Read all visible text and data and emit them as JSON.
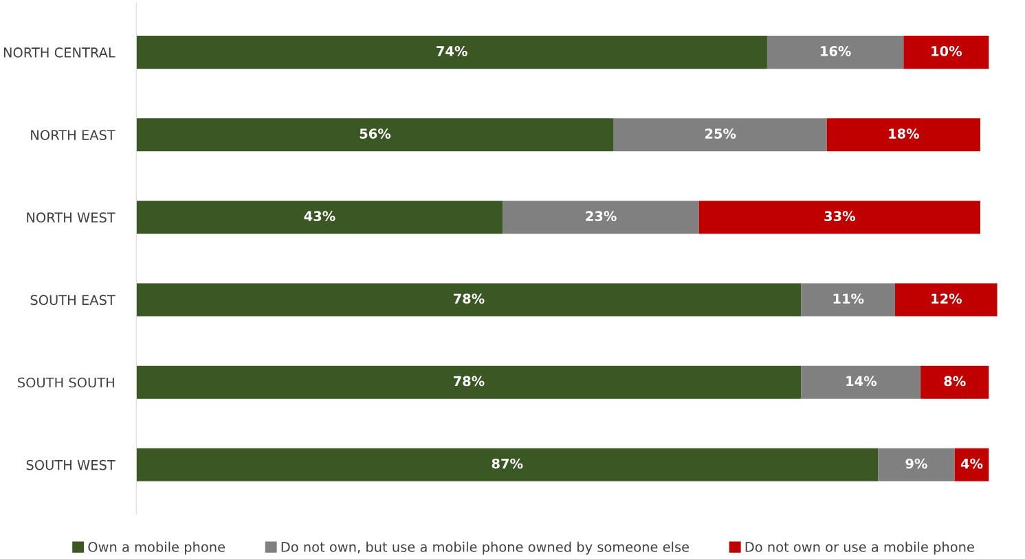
{
  "chart_data": {
    "type": "bar",
    "orientation": "horizontal",
    "stacked": true,
    "categories": [
      "NORTH CENTRAL",
      "NORTH EAST",
      "NORTH WEST",
      "SOUTH EAST",
      "SOUTH SOUTH",
      "SOUTH WEST"
    ],
    "series": [
      {
        "name": "Own a mobile phone",
        "color": "#3b5724",
        "values": [
          74,
          56,
          43,
          78,
          78,
          87
        ],
        "value_labels": [
          "74%",
          "56%",
          "43%",
          "78%",
          "78%",
          "87%"
        ]
      },
      {
        "name": "Do not own, but use a mobile phone owned by someone else",
        "color": "#808080",
        "values": [
          16,
          25,
          23,
          11,
          14,
          9
        ],
        "value_labels": [
          "16%",
          "25%",
          "23%",
          "11%",
          "14%",
          "9%"
        ]
      },
      {
        "name": "Do not own or use a mobile phone",
        "color": "#c00000",
        "values": [
          10,
          18,
          33,
          12,
          8,
          4
        ],
        "value_labels": [
          "10%",
          "18%",
          "33%",
          "12%",
          "8%",
          "4%"
        ]
      }
    ],
    "tick_labels": "y",
    "grid": false,
    "legend": "bottom"
  }
}
